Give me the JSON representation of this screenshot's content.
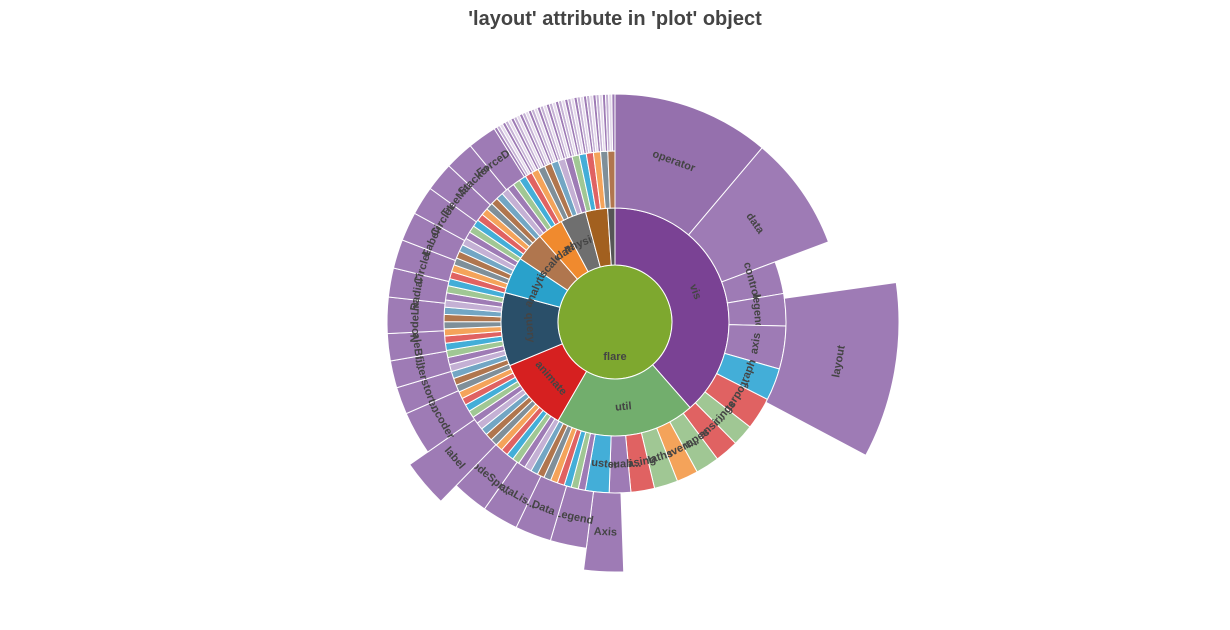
{
  "title": "'layout' attribute in 'plot' object",
  "chart_data": {
    "type": "sunburst",
    "root": {
      "name": "flare",
      "color": "#7ea82f"
    },
    "ring1": [
      {
        "name": "vis",
        "value": 37,
        "color": "#7a4294",
        "label": true
      },
      {
        "name": "util",
        "value": 19,
        "color": "#72ae6d",
        "label": true
      },
      {
        "name": "animate",
        "value": 10,
        "color": "#d62020",
        "label": true
      },
      {
        "name": "query",
        "value": 10,
        "color": "#2a4f69",
        "label": true
      },
      {
        "name": "analytics",
        "display": "analyti...",
        "value": 5,
        "color": "#29a1cb",
        "label": true
      },
      {
        "name": "scale",
        "value": 4,
        "color": "#b0764e",
        "label": true
      },
      {
        "name": "data",
        "value": 3.5,
        "color": "#f08a2e",
        "label": true
      },
      {
        "name": "physics",
        "value": 3.5,
        "color": "#6f6f6f",
        "label": true
      },
      {
        "name": "display",
        "value": 3,
        "color": "#a2601f",
        "label": false
      },
      {
        "name": "flex",
        "value": 1,
        "color": "#555555",
        "label": false
      }
    ],
    "ring2": [
      {
        "name": "operator",
        "value": 11,
        "color": "#9570ad",
        "ext": true,
        "label": true
      },
      {
        "name": "data",
        "value": 8,
        "color": "#9e7bb5",
        "ext": true,
        "label": true
      },
      {
        "name": "controls",
        "display": "control...",
        "value": 3,
        "color": "#9e7bb5",
        "label": true
      },
      {
        "name": "legend",
        "value": 3,
        "color": "#9e7bb5",
        "label": true
      },
      {
        "name": "axis",
        "value": 4,
        "color": "#9e7bb5",
        "label": true
      },
      {
        "name": "graph",
        "value": 3,
        "color": "#43aed8",
        "label": true
      },
      {
        "name": "interpolate",
        "display": "interpo...",
        "value": 3,
        "color": "#e06262",
        "label": true
      },
      {
        "name": "Strings",
        "value": 2,
        "color": "#a0c794",
        "label": true
      },
      {
        "name": "Transitioner",
        "display": "Transi...",
        "value": 2.2,
        "color": "#e06262",
        "label": true
      },
      {
        "name": "Shapes",
        "value": 2.2,
        "color": "#a0c794",
        "label": true
      },
      {
        "name": "Converters",
        "display": "Convert...",
        "value": 2,
        "color": "#f4a35a",
        "label": true
      },
      {
        "name": "Maths",
        "value": 2.2,
        "color": "#a0c794",
        "label": true
      },
      {
        "name": "Easing",
        "value": 2.2,
        "color": "#e06262",
        "label": true
      },
      {
        "name": "Visualization",
        "display": "Visuali...",
        "value": 2,
        "color": "#9e7bb5",
        "label": true
      },
      {
        "name": "cluster",
        "value": 2.2,
        "color": "#43aed8",
        "label": true
      }
    ],
    "ring3": [
      {
        "name": "layout",
        "value": 8,
        "color": "#9e7bb5",
        "ext": true,
        "label": true
      },
      {
        "name": "Axis",
        "value": 2,
        "color": "#9e7bb5",
        "ext": true,
        "label": true
      },
      {
        "name": "Legend",
        "value": 2,
        "color": "#9e7bb5",
        "label": true
      },
      {
        "name": "Data",
        "value": 2,
        "color": "#9e7bb5",
        "label": true
      },
      {
        "name": "DataList",
        "display": "DataLis...",
        "value": 2,
        "color": "#9e7bb5",
        "label": true
      },
      {
        "name": "NodeSprite",
        "display": "NodeSpr...",
        "value": 2,
        "color": "#9e7bb5",
        "label": true
      },
      {
        "name": "label",
        "value": 2.4,
        "color": "#9e7bb5",
        "ext": true,
        "label": true
      },
      {
        "name": "encoder",
        "value": 2.4,
        "color": "#9e7bb5",
        "label": true
      },
      {
        "name": "distortion",
        "display": "distort...",
        "value": 1.5,
        "color": "#9e7bb5",
        "label": true
      },
      {
        "name": "filter",
        "value": 1.5,
        "color": "#9e7bb5",
        "label": true
      },
      {
        "name": "ScaleBinding",
        "display": "ScaleBi...",
        "value": 1.5,
        "color": "#9e7bb5",
        "label": true
      },
      {
        "name": "NodeLinkTreeLayout",
        "display": "NodeLin...",
        "value": 2,
        "color": "#9e7bb5",
        "label": true
      },
      {
        "name": "RadialTreeLayout",
        "display": "RadialT...",
        "value": 1.6,
        "color": "#9e7bb5",
        "label": true
      },
      {
        "name": "CirclePackingLayout",
        "display": "CircleP...",
        "value": 1.6,
        "color": "#9e7bb5",
        "label": true
      },
      {
        "name": "Labeler",
        "value": 1.6,
        "color": "#9e7bb5",
        "label": true
      },
      {
        "name": "CircleLayout",
        "display": "CircleL...",
        "value": 1.6,
        "color": "#9e7bb5",
        "label": true
      },
      {
        "name": "TreeMapLayout",
        "display": "TreeMap...",
        "value": 1.6,
        "color": "#9e7bb5",
        "label": true
      },
      {
        "name": "StackedAreaLayout",
        "display": "Stacked...",
        "value": 1.6,
        "color": "#9e7bb5",
        "label": true
      },
      {
        "name": "ForceDirectedLayout",
        "display": "ForceDi...",
        "value": 1.6,
        "color": "#9e7bb5",
        "label": true
      }
    ],
    "small_leaf_palette": [
      "#9e7bb5",
      "#a0c794",
      "#43aed8",
      "#e06262",
      "#f4a35a",
      "#7f8f99",
      "#b0764e",
      "#72a6c4",
      "#c4b0d4"
    ]
  }
}
